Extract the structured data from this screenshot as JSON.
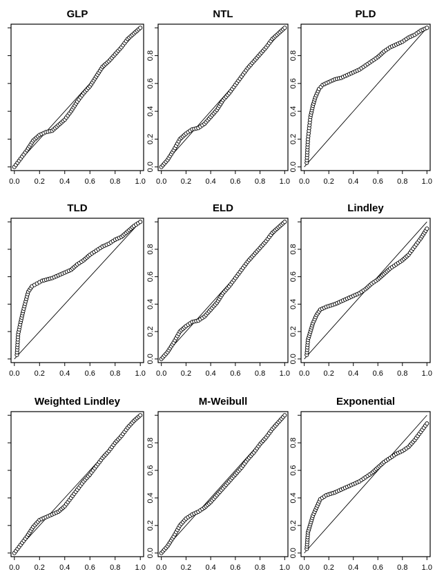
{
  "chart_data": [
    {
      "type": "scatter",
      "title": "GLP",
      "xlim": [
        0,
        1
      ],
      "ylim": [
        0,
        1
      ],
      "x_ticks": [
        "0.0",
        "0.2",
        "0.4",
        "0.6",
        "0.8",
        "1.0"
      ],
      "y_ticks": [
        "",
        "",
        "",
        "",
        "",
        ""
      ],
      "reference_line": [
        [
          0,
          0
        ],
        [
          1,
          1
        ]
      ],
      "curve": [
        [
          0.0,
          0.0
        ],
        [
          0.05,
          0.06
        ],
        [
          0.1,
          0.12
        ],
        [
          0.15,
          0.19
        ],
        [
          0.2,
          0.23
        ],
        [
          0.25,
          0.25
        ],
        [
          0.3,
          0.26
        ],
        [
          0.35,
          0.3
        ],
        [
          0.4,
          0.34
        ],
        [
          0.45,
          0.4
        ],
        [
          0.5,
          0.47
        ],
        [
          0.55,
          0.53
        ],
        [
          0.6,
          0.58
        ],
        [
          0.65,
          0.65
        ],
        [
          0.7,
          0.72
        ],
        [
          0.75,
          0.76
        ],
        [
          0.8,
          0.81
        ],
        [
          0.85,
          0.86
        ],
        [
          0.9,
          0.92
        ],
        [
          0.95,
          0.96
        ],
        [
          1.0,
          1.0
        ]
      ]
    },
    {
      "type": "scatter",
      "title": "NTL",
      "xlim": [
        0,
        1
      ],
      "ylim": [
        0,
        1
      ],
      "x_ticks": [
        "0.0",
        "0.2",
        "0.4",
        "0.6",
        "0.8",
        "1.0"
      ],
      "y_ticks": [
        "0.0",
        "0.2",
        "0.4",
        "0.6",
        "0.8",
        ""
      ],
      "reference_line": [
        [
          0,
          0
        ],
        [
          1,
          1
        ]
      ],
      "curve": [
        [
          0.0,
          0.0
        ],
        [
          0.05,
          0.05
        ],
        [
          0.1,
          0.12
        ],
        [
          0.15,
          0.2
        ],
        [
          0.2,
          0.24
        ],
        [
          0.25,
          0.27
        ],
        [
          0.3,
          0.28
        ],
        [
          0.35,
          0.31
        ],
        [
          0.4,
          0.36
        ],
        [
          0.45,
          0.41
        ],
        [
          0.5,
          0.48
        ],
        [
          0.55,
          0.53
        ],
        [
          0.6,
          0.59
        ],
        [
          0.65,
          0.65
        ],
        [
          0.7,
          0.71
        ],
        [
          0.75,
          0.76
        ],
        [
          0.8,
          0.81
        ],
        [
          0.85,
          0.86
        ],
        [
          0.9,
          0.92
        ],
        [
          0.95,
          0.96
        ],
        [
          1.0,
          1.0
        ]
      ]
    },
    {
      "type": "scatter",
      "title": "PLD",
      "xlim": [
        0,
        1
      ],
      "ylim": [
        0,
        1
      ],
      "x_ticks": [
        "0.0",
        "0.2",
        "0.4",
        "0.6",
        "0.8",
        "1.0"
      ],
      "y_ticks": [
        "0.0",
        "0.2",
        "0.4",
        "0.6",
        "0.8",
        ""
      ],
      "reference_line": [
        [
          0,
          0
        ],
        [
          1,
          1
        ]
      ],
      "curve": [
        [
          0.02,
          0.03
        ],
        [
          0.03,
          0.2
        ],
        [
          0.04,
          0.28
        ],
        [
          0.05,
          0.36
        ],
        [
          0.07,
          0.44
        ],
        [
          0.09,
          0.5
        ],
        [
          0.12,
          0.56
        ],
        [
          0.15,
          0.59
        ],
        [
          0.2,
          0.61
        ],
        [
          0.25,
          0.63
        ],
        [
          0.3,
          0.64
        ],
        [
          0.35,
          0.66
        ],
        [
          0.4,
          0.68
        ],
        [
          0.45,
          0.7
        ],
        [
          0.5,
          0.73
        ],
        [
          0.55,
          0.76
        ],
        [
          0.6,
          0.79
        ],
        [
          0.65,
          0.83
        ],
        [
          0.7,
          0.86
        ],
        [
          0.75,
          0.88
        ],
        [
          0.8,
          0.9
        ],
        [
          0.85,
          0.93
        ],
        [
          0.9,
          0.95
        ],
        [
          0.95,
          0.98
        ],
        [
          1.0,
          1.0
        ]
      ]
    },
    {
      "type": "scatter",
      "title": "TLD",
      "xlim": [
        0,
        1
      ],
      "ylim": [
        0,
        1
      ],
      "x_ticks": [
        "0.0",
        "0.2",
        "0.4",
        "0.6",
        "0.8",
        "1.0"
      ],
      "y_ticks": [
        "",
        "",
        "",
        "",
        "",
        ""
      ],
      "reference_line": [
        [
          0,
          0
        ],
        [
          1,
          1
        ]
      ],
      "curve": [
        [
          0.02,
          0.03
        ],
        [
          0.03,
          0.18
        ],
        [
          0.05,
          0.27
        ],
        [
          0.07,
          0.35
        ],
        [
          0.09,
          0.42
        ],
        [
          0.11,
          0.49
        ],
        [
          0.14,
          0.53
        ],
        [
          0.18,
          0.55
        ],
        [
          0.22,
          0.57
        ],
        [
          0.3,
          0.59
        ],
        [
          0.35,
          0.61
        ],
        [
          0.4,
          0.63
        ],
        [
          0.45,
          0.65
        ],
        [
          0.5,
          0.69
        ],
        [
          0.55,
          0.72
        ],
        [
          0.6,
          0.76
        ],
        [
          0.65,
          0.79
        ],
        [
          0.7,
          0.82
        ],
        [
          0.75,
          0.84
        ],
        [
          0.8,
          0.87
        ],
        [
          0.85,
          0.89
        ],
        [
          0.9,
          0.93
        ],
        [
          0.95,
          0.97
        ],
        [
          1.0,
          1.0
        ]
      ]
    },
    {
      "type": "scatter",
      "title": "ELD",
      "xlim": [
        0,
        1
      ],
      "ylim": [
        0,
        1
      ],
      "x_ticks": [
        "0.0",
        "0.2",
        "0.4",
        "0.6",
        "0.8",
        "1.0"
      ],
      "y_ticks": [
        "0.0",
        "0.2",
        "0.4",
        "0.6",
        "0.8",
        ""
      ],
      "reference_line": [
        [
          0,
          0
        ],
        [
          1,
          1
        ]
      ],
      "curve": [
        [
          0.0,
          0.0
        ],
        [
          0.05,
          0.05
        ],
        [
          0.1,
          0.12
        ],
        [
          0.15,
          0.2
        ],
        [
          0.2,
          0.24
        ],
        [
          0.25,
          0.27
        ],
        [
          0.3,
          0.28
        ],
        [
          0.35,
          0.31
        ],
        [
          0.4,
          0.36
        ],
        [
          0.45,
          0.41
        ],
        [
          0.5,
          0.48
        ],
        [
          0.55,
          0.53
        ],
        [
          0.6,
          0.59
        ],
        [
          0.65,
          0.65
        ],
        [
          0.7,
          0.71
        ],
        [
          0.75,
          0.76
        ],
        [
          0.8,
          0.81
        ],
        [
          0.85,
          0.86
        ],
        [
          0.9,
          0.92
        ],
        [
          0.95,
          0.96
        ],
        [
          1.0,
          1.0
        ]
      ]
    },
    {
      "type": "scatter",
      "title": "Lindley",
      "xlim": [
        0,
        1
      ],
      "ylim": [
        0,
        1
      ],
      "x_ticks": [
        "0.0",
        "0.2",
        "0.4",
        "0.6",
        "0.8",
        "1.0"
      ],
      "y_ticks": [
        "0.0",
        "0.2",
        "0.4",
        "0.6",
        "0.8",
        ""
      ],
      "reference_line": [
        [
          0,
          0
        ],
        [
          1,
          1
        ]
      ],
      "curve": [
        [
          0.02,
          0.03
        ],
        [
          0.03,
          0.14
        ],
        [
          0.05,
          0.2
        ],
        [
          0.07,
          0.26
        ],
        [
          0.1,
          0.32
        ],
        [
          0.13,
          0.36
        ],
        [
          0.18,
          0.38
        ],
        [
          0.25,
          0.4
        ],
        [
          0.3,
          0.42
        ],
        [
          0.35,
          0.44
        ],
        [
          0.4,
          0.46
        ],
        [
          0.45,
          0.48
        ],
        [
          0.5,
          0.51
        ],
        [
          0.55,
          0.55
        ],
        [
          0.6,
          0.58
        ],
        [
          0.65,
          0.62
        ],
        [
          0.7,
          0.66
        ],
        [
          0.75,
          0.69
        ],
        [
          0.8,
          0.72
        ],
        [
          0.85,
          0.76
        ],
        [
          0.9,
          0.82
        ],
        [
          0.95,
          0.88
        ],
        [
          1.0,
          0.95
        ]
      ]
    },
    {
      "type": "scatter",
      "title": "Weighted Lindley",
      "xlim": [
        0,
        1
      ],
      "ylim": [
        0,
        1
      ],
      "x_ticks": [
        "0.0",
        "0.2",
        "0.4",
        "0.6",
        "0.8",
        "1.0"
      ],
      "y_ticks": [
        "",
        "",
        "",
        "",
        "",
        ""
      ],
      "reference_line": [
        [
          0,
          0
        ],
        [
          1,
          1
        ]
      ],
      "curve": [
        [
          0.0,
          0.0
        ],
        [
          0.05,
          0.06
        ],
        [
          0.1,
          0.12
        ],
        [
          0.15,
          0.19
        ],
        [
          0.2,
          0.24
        ],
        [
          0.25,
          0.26
        ],
        [
          0.3,
          0.28
        ],
        [
          0.35,
          0.3
        ],
        [
          0.4,
          0.34
        ],
        [
          0.45,
          0.4
        ],
        [
          0.5,
          0.46
        ],
        [
          0.55,
          0.52
        ],
        [
          0.6,
          0.57
        ],
        [
          0.65,
          0.63
        ],
        [
          0.7,
          0.69
        ],
        [
          0.75,
          0.74
        ],
        [
          0.8,
          0.8
        ],
        [
          0.85,
          0.85
        ],
        [
          0.9,
          0.91
        ],
        [
          0.95,
          0.96
        ],
        [
          1.0,
          1.0
        ]
      ]
    },
    {
      "type": "scatter",
      "title": "M-Weibull",
      "xlim": [
        0,
        1
      ],
      "ylim": [
        0,
        1
      ],
      "x_ticks": [
        "0.0",
        "0.2",
        "0.4",
        "0.6",
        "0.8",
        "1.0"
      ],
      "y_ticks": [
        "0.0",
        "0.2",
        "0.4",
        "0.6",
        "0.8",
        ""
      ],
      "reference_line": [
        [
          0,
          0
        ],
        [
          1,
          1
        ]
      ],
      "curve": [
        [
          0.0,
          0.0
        ],
        [
          0.05,
          0.05
        ],
        [
          0.1,
          0.12
        ],
        [
          0.15,
          0.2
        ],
        [
          0.2,
          0.25
        ],
        [
          0.25,
          0.28
        ],
        [
          0.3,
          0.3
        ],
        [
          0.35,
          0.33
        ],
        [
          0.4,
          0.37
        ],
        [
          0.45,
          0.42
        ],
        [
          0.5,
          0.47
        ],
        [
          0.55,
          0.52
        ],
        [
          0.6,
          0.57
        ],
        [
          0.65,
          0.62
        ],
        [
          0.7,
          0.68
        ],
        [
          0.75,
          0.73
        ],
        [
          0.8,
          0.79
        ],
        [
          0.85,
          0.84
        ],
        [
          0.9,
          0.9
        ],
        [
          0.95,
          0.95
        ],
        [
          1.0,
          1.0
        ]
      ]
    },
    {
      "type": "scatter",
      "title": "Exponential",
      "xlim": [
        0,
        1
      ],
      "ylim": [
        0,
        1
      ],
      "x_ticks": [
        "0.0",
        "0.2",
        "0.4",
        "0.6",
        "0.8",
        "1.0"
      ],
      "y_ticks": [
        "0.0",
        "0.2",
        "0.4",
        "0.6",
        "0.8",
        ""
      ],
      "reference_line": [
        [
          0,
          0
        ],
        [
          1,
          1
        ]
      ],
      "curve": [
        [
          0.02,
          0.03
        ],
        [
          0.03,
          0.15
        ],
        [
          0.05,
          0.21
        ],
        [
          0.07,
          0.27
        ],
        [
          0.1,
          0.33
        ],
        [
          0.13,
          0.39
        ],
        [
          0.18,
          0.42
        ],
        [
          0.25,
          0.44
        ],
        [
          0.3,
          0.46
        ],
        [
          0.35,
          0.48
        ],
        [
          0.4,
          0.5
        ],
        [
          0.45,
          0.52
        ],
        [
          0.5,
          0.55
        ],
        [
          0.55,
          0.58
        ],
        [
          0.6,
          0.62
        ],
        [
          0.65,
          0.66
        ],
        [
          0.7,
          0.69
        ],
        [
          0.75,
          0.72
        ],
        [
          0.8,
          0.74
        ],
        [
          0.85,
          0.77
        ],
        [
          0.9,
          0.82
        ],
        [
          0.95,
          0.88
        ],
        [
          1.0,
          0.94
        ]
      ]
    }
  ]
}
